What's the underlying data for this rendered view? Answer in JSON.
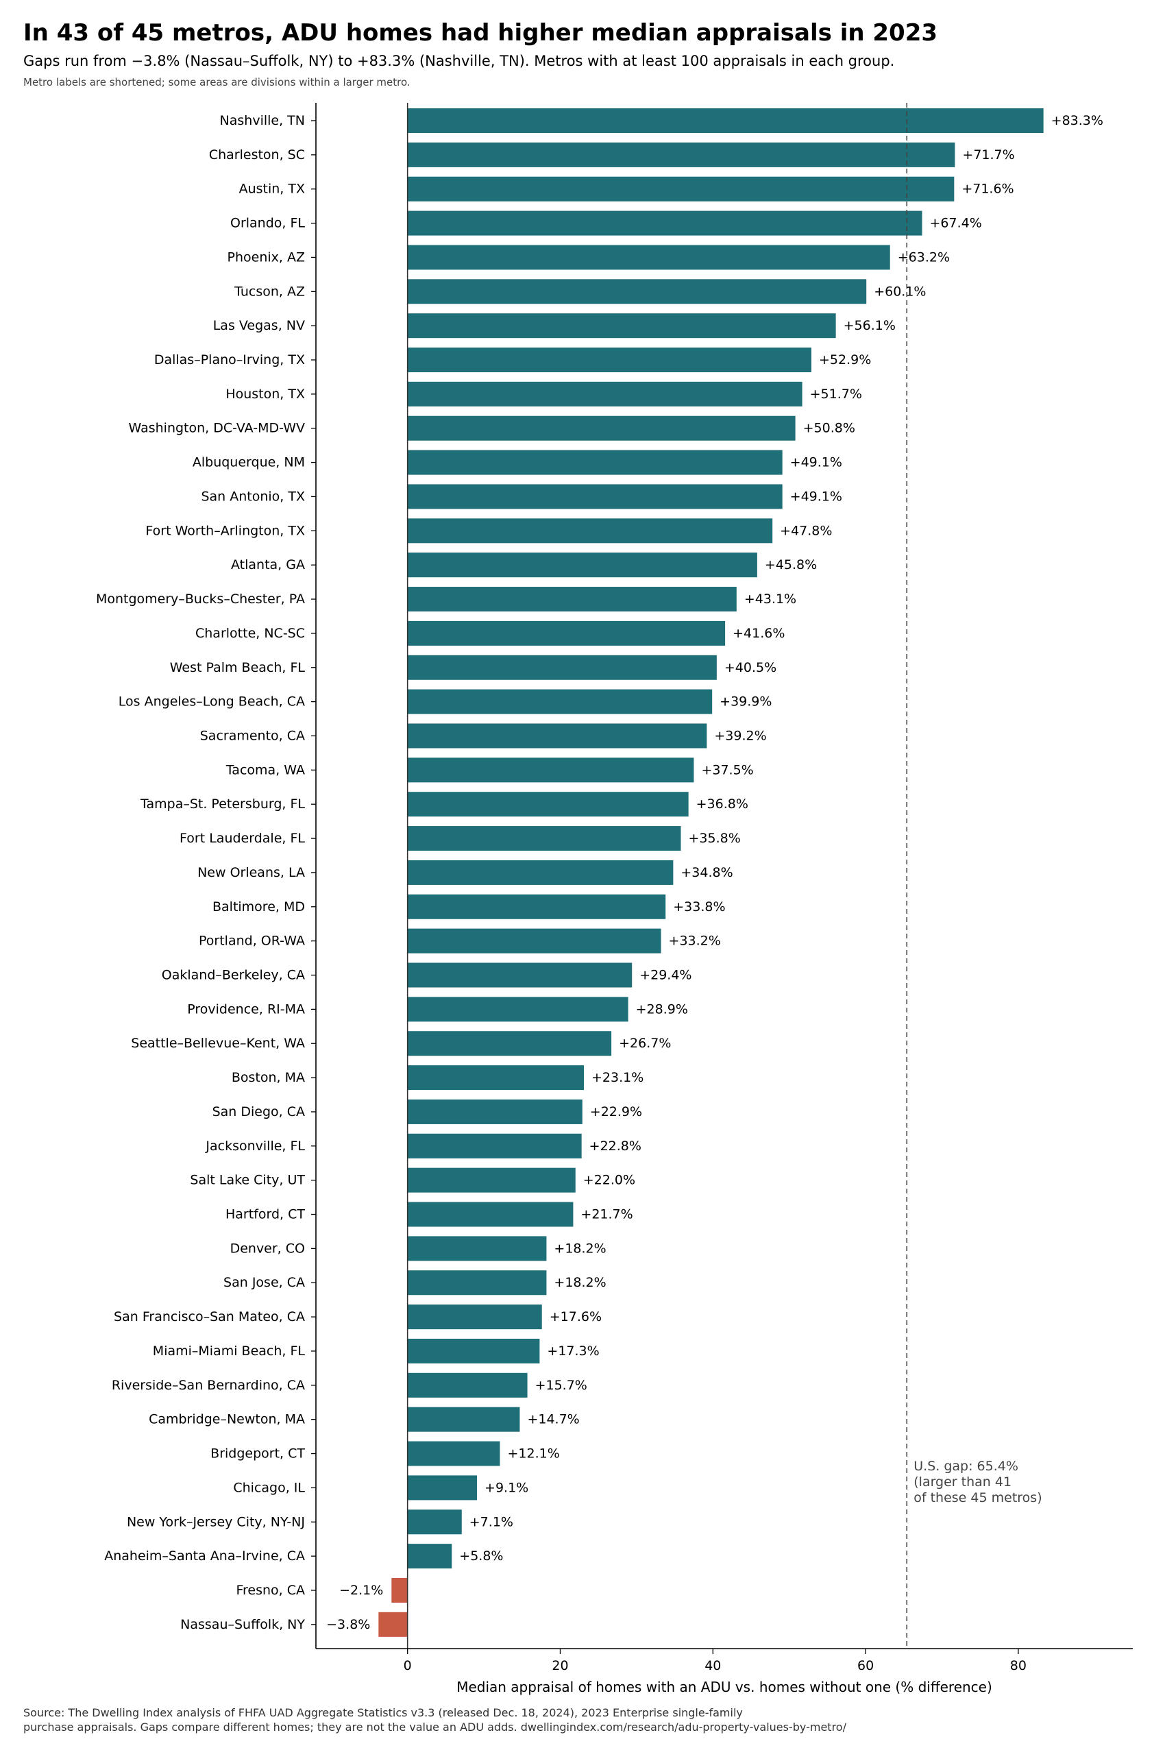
{
  "header": {
    "title": "In 43 of 45 metros, ADU homes had higher median appraisals in 2023",
    "subtitle": "Gaps run from −3.8% (Nassau–Suffolk, NY) to +83.3% (Nashville, TN). Metros with at least 100 appraisals in each group.",
    "note": "Metro labels are shortened; some areas are divisions within a larger metro."
  },
  "footer": {
    "source_line1": "Source: The Dwelling Index analysis of FHFA UAD Aggregate Statistics v3.3 (released Dec. 18, 2024), 2023 Enterprise single-family",
    "source_line2": "purchase appraisals. Gaps compare different homes; they are not the value an ADU adds. dwellingindex.com/research/adu-property-values-by-metro/"
  },
  "chart_data": {
    "type": "bar",
    "orientation": "horizontal",
    "xlabel": "Median appraisal of homes with an ADU vs. homes without one (% difference)",
    "xlim": [
      -12,
      95
    ],
    "xticks": [
      0,
      20,
      40,
      60,
      80
    ],
    "grid": false,
    "colors": {
      "positive": "#1f6f78",
      "negative": "#c85a43"
    },
    "reference_line": {
      "value": 65.4,
      "style": "dashed",
      "annotation": [
        "U.S. gap: 65.4%",
        "(larger than 41",
        "of these 45 metros)"
      ]
    },
    "categories": [
      "Nashville, TN",
      "Charleston, SC",
      "Austin, TX",
      "Orlando, FL",
      "Phoenix, AZ",
      "Tucson, AZ",
      "Las Vegas, NV",
      "Dallas–Plano–Irving, TX",
      "Houston, TX",
      "Washington, DC-VA-MD-WV",
      "Albuquerque, NM",
      "San Antonio, TX",
      "Fort Worth–Arlington, TX",
      "Atlanta, GA",
      "Montgomery–Bucks–Chester, PA",
      "Charlotte, NC-SC",
      "West Palm Beach, FL",
      "Los Angeles–Long Beach, CA",
      "Sacramento, CA",
      "Tacoma, WA",
      "Tampa–St. Petersburg, FL",
      "Fort Lauderdale, FL",
      "New Orleans, LA",
      "Baltimore, MD",
      "Portland, OR-WA",
      "Oakland–Berkeley, CA",
      "Providence, RI-MA",
      "Seattle–Bellevue–Kent, WA",
      "Boston, MA",
      "San Diego, CA",
      "Jacksonville, FL",
      "Salt Lake City, UT",
      "Hartford, CT",
      "Denver, CO",
      "San Jose, CA",
      "San Francisco–San Mateo, CA",
      "Miami–Miami Beach, FL",
      "Riverside–San Bernardino, CA",
      "Cambridge–Newton, MA",
      "Bridgeport, CT",
      "Chicago, IL",
      "New York–Jersey City, NY-NJ",
      "Anaheim–Santa Ana–Irvine, CA",
      "Fresno, CA",
      "Nassau–Suffolk, NY"
    ],
    "values": [
      83.3,
      71.7,
      71.6,
      67.4,
      63.2,
      60.1,
      56.1,
      52.9,
      51.7,
      50.8,
      49.1,
      49.1,
      47.8,
      45.8,
      43.1,
      41.6,
      40.5,
      39.9,
      39.2,
      37.5,
      36.8,
      35.8,
      34.8,
      33.8,
      33.2,
      29.4,
      28.9,
      26.7,
      23.1,
      22.9,
      22.8,
      22.0,
      21.7,
      18.2,
      18.2,
      17.6,
      17.3,
      15.7,
      14.7,
      12.1,
      9.1,
      7.1,
      5.8,
      -2.1,
      -3.8
    ],
    "labels": [
      "+83.3%",
      "+71.7%",
      "+71.6%",
      "+67.4%",
      "+63.2%",
      "+60.1%",
      "+56.1%",
      "+52.9%",
      "+51.7%",
      "+50.8%",
      "+49.1%",
      "+49.1%",
      "+47.8%",
      "+45.8%",
      "+43.1%",
      "+41.6%",
      "+40.5%",
      "+39.9%",
      "+39.2%",
      "+37.5%",
      "+36.8%",
      "+35.8%",
      "+34.8%",
      "+33.8%",
      "+33.2%",
      "+29.4%",
      "+28.9%",
      "+26.7%",
      "+23.1%",
      "+22.9%",
      "+22.8%",
      "+22.0%",
      "+21.7%",
      "+18.2%",
      "+18.2%",
      "+17.6%",
      "+17.3%",
      "+15.7%",
      "+14.7%",
      "+12.1%",
      "+9.1%",
      "+7.1%",
      "+5.8%",
      "−2.1%",
      "−3.8%"
    ]
  }
}
